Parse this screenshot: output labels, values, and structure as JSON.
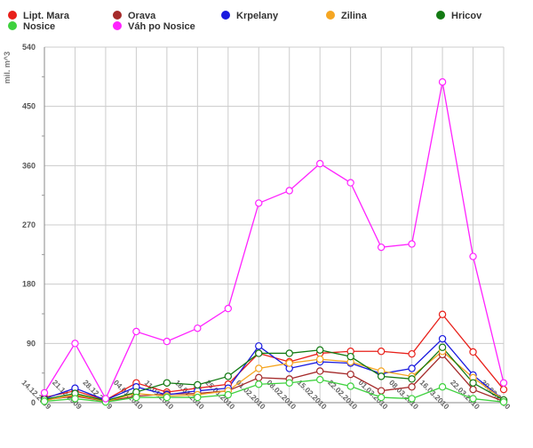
{
  "chart_data": {
    "type": "line",
    "title": "",
    "xlabel": "",
    "ylabel": "mil. m^3",
    "ylim": [
      0,
      540
    ],
    "yticks": [
      "0",
      "90",
      "180",
      "270",
      "360",
      "450",
      "540"
    ],
    "grid": true,
    "legend_position": "top",
    "x": [
      "14.12.2009",
      "21.12.2009",
      "28.12.2009",
      "04.01.2010",
      "11.01.2010",
      "18.01.2010",
      "25.01.2010",
      "01.02.2010",
      "08.02.2010",
      "15.02.2010",
      "22.02.2010",
      "01.03.2010",
      "08.03.2010",
      "16.03.2010",
      "22.03.2010",
      "30.03.2010"
    ],
    "series": [
      {
        "name": "Lipt. Mara",
        "color": "#e8201a",
        "values": [
          8,
          18,
          4,
          30,
          16,
          22,
          28,
          75,
          62,
          75,
          78,
          78,
          74,
          134,
          77,
          20
        ]
      },
      {
        "name": "Orava",
        "color": "#a52a2a",
        "values": [
          4,
          10,
          2,
          10,
          13,
          14,
          18,
          38,
          36,
          48,
          43,
          18,
          24,
          73,
          20,
          2
        ]
      },
      {
        "name": "Krpelany",
        "color": "#1a1adf",
        "values": [
          6,
          22,
          4,
          24,
          12,
          18,
          22,
          86,
          52,
          62,
          60,
          44,
          52,
          97,
          42,
          4
        ]
      },
      {
        "name": "Zilina",
        "color": "#f5a623",
        "values": [
          3,
          12,
          2,
          14,
          10,
          12,
          18,
          52,
          60,
          66,
          62,
          48,
          40,
          78,
          38,
          4
        ]
      },
      {
        "name": "Hricov",
        "color": "#137a13",
        "values": [
          5,
          14,
          3,
          16,
          30,
          27,
          40,
          75,
          75,
          80,
          70,
          40,
          36,
          84,
          30,
          4
        ]
      },
      {
        "name": "Nosice",
        "color": "#3ed13e",
        "values": [
          2,
          6,
          1,
          8,
          8,
          8,
          12,
          28,
          30,
          35,
          25,
          8,
          6,
          24,
          6,
          1
        ]
      },
      {
        "name": "Váh po Nosice",
        "color": "#ff22ff",
        "values": [
          15,
          90,
          6,
          108,
          93,
          113,
          143,
          303,
          322,
          363,
          334,
          236,
          241,
          487,
          222,
          30
        ]
      }
    ]
  }
}
